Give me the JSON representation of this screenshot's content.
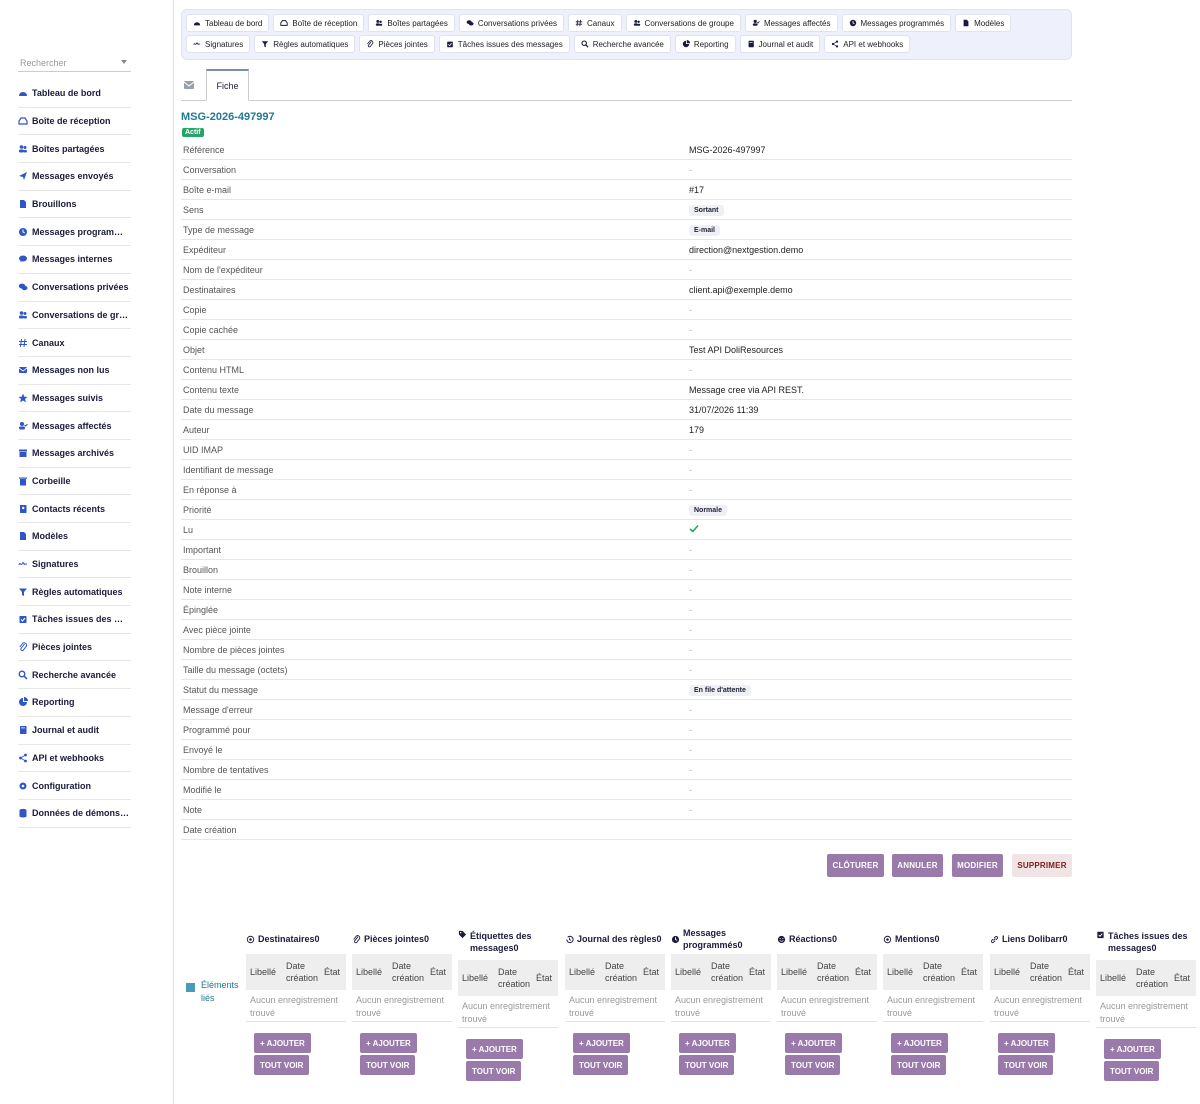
{
  "sidebar": {
    "search_placeholder": "Rechercher",
    "items": [
      {
        "label": "Tableau de bord",
        "icon": "dashboard-icon"
      },
      {
        "label": "Boîte de réception",
        "icon": "inbox-icon"
      },
      {
        "label": "Boîtes partagées",
        "icon": "users-icon"
      },
      {
        "label": "Messages envoyés",
        "icon": "paper-plane-icon"
      },
      {
        "label": "Brouillons",
        "icon": "file-icon"
      },
      {
        "label": "Messages programmés",
        "icon": "clock-icon"
      },
      {
        "label": "Messages internes",
        "icon": "chat-icon"
      },
      {
        "label": "Conversations privées",
        "icon": "comments-icon"
      },
      {
        "label": "Conversations de groupe",
        "icon": "group-icon"
      },
      {
        "label": "Canaux",
        "icon": "hashtag-icon"
      },
      {
        "label": "Messages non lus",
        "icon": "envelope-icon"
      },
      {
        "label": "Messages suivis",
        "icon": "star-icon"
      },
      {
        "label": "Messages affectés",
        "icon": "user-check-icon"
      },
      {
        "label": "Messages archivés",
        "icon": "archive-icon"
      },
      {
        "label": "Corbeille",
        "icon": "trash-icon"
      },
      {
        "label": "Contacts récents",
        "icon": "address-book-icon"
      },
      {
        "label": "Modèles",
        "icon": "file-alt-icon"
      },
      {
        "label": "Signatures",
        "icon": "signature-icon"
      },
      {
        "label": "Règles automatiques",
        "icon": "filter-icon"
      },
      {
        "label": "Tâches issues des messages",
        "icon": "tasks-icon"
      },
      {
        "label": "Pièces jointes",
        "icon": "paperclip-icon"
      },
      {
        "label": "Recherche avancée",
        "icon": "search-icon"
      },
      {
        "label": "Reporting",
        "icon": "chart-pie-icon"
      },
      {
        "label": "Journal et audit",
        "icon": "book-icon"
      },
      {
        "label": "API et webhooks",
        "icon": "share-icon"
      },
      {
        "label": "Configuration",
        "icon": "gear-icon"
      },
      {
        "label": "Données de démonstration",
        "icon": "database-icon"
      }
    ]
  },
  "topnav": {
    "row1": [
      {
        "label": "Tableau de bord",
        "icon": "dashboard-icon"
      },
      {
        "label": "Boîte de réception",
        "icon": "inbox-icon"
      },
      {
        "label": "Boîtes partagées",
        "icon": "users-icon"
      },
      {
        "label": "Conversations privées",
        "icon": "comments-icon"
      },
      {
        "label": "Canaux",
        "icon": "hashtag-icon"
      },
      {
        "label": "Conversations de groupe",
        "icon": "group-icon"
      },
      {
        "label": "Messages affectés",
        "icon": "user-check-icon"
      },
      {
        "label": "Messages programmés",
        "icon": "clock-icon"
      },
      {
        "label": "Modèles",
        "icon": "file-alt-icon"
      }
    ],
    "row2": [
      {
        "label": "Signatures",
        "icon": "signature-icon"
      },
      {
        "label": "Règles automatiques",
        "icon": "filter-icon"
      },
      {
        "label": "Pièces jointes",
        "icon": "paperclip-icon"
      },
      {
        "label": "Tâches issues des messages",
        "icon": "tasks-icon"
      },
      {
        "label": "Recherche avancée",
        "icon": "search-icon"
      },
      {
        "label": "Reporting",
        "icon": "chart-pie-icon"
      },
      {
        "label": "Journal et audit",
        "icon": "book-icon"
      },
      {
        "label": "API et webhooks",
        "icon": "share-icon"
      }
    ]
  },
  "tabs": {
    "fiche": "Fiche"
  },
  "record": {
    "title": "MSG-2026-497997",
    "status": "Actif",
    "fields": [
      {
        "label": "Référence",
        "value": "MSG-2026-497997"
      },
      {
        "label": "Conversation",
        "value": "-"
      },
      {
        "label": "Boîte e-mail",
        "value": "#17"
      },
      {
        "label": "Sens",
        "value": "Sortant",
        "pill": true
      },
      {
        "label": "Type de message",
        "value": "E-mail",
        "pill": true
      },
      {
        "label": "Expéditeur",
        "value": "direction@nextgestion.demo"
      },
      {
        "label": "Nom de l'expéditeur",
        "value": "-"
      },
      {
        "label": "Destinataires",
        "value": "client.api@exemple.demo"
      },
      {
        "label": "Copie",
        "value": "-"
      },
      {
        "label": "Copie cachée",
        "value": "-"
      },
      {
        "label": "Objet",
        "value": "Test API DoliResources"
      },
      {
        "label": "Contenu HTML",
        "value": "-"
      },
      {
        "label": "Contenu texte",
        "value": "Message cree via API REST."
      },
      {
        "label": "Date du message",
        "value": "31/07/2026 11:39"
      },
      {
        "label": "Auteur",
        "value": "179"
      },
      {
        "label": "UID IMAP",
        "value": "-"
      },
      {
        "label": "Identifiant de message",
        "value": "-"
      },
      {
        "label": "En réponse à",
        "value": "-"
      },
      {
        "label": "Priorité",
        "value": "Normale",
        "pill": true
      },
      {
        "label": "Lu",
        "value": "✓",
        "check": true
      },
      {
        "label": "Important",
        "value": "-"
      },
      {
        "label": "Brouillon",
        "value": "-"
      },
      {
        "label": "Note interne",
        "value": "-"
      },
      {
        "label": "Épinglée",
        "value": "-"
      },
      {
        "label": "Avec pièce jointe",
        "value": "-"
      },
      {
        "label": "Nombre de pièces jointes",
        "value": "-"
      },
      {
        "label": "Taille du message (octets)",
        "value": "-"
      },
      {
        "label": "Statut du message",
        "value": "En file d'attente",
        "pill": true
      },
      {
        "label": "Message d'erreur",
        "value": "-"
      },
      {
        "label": "Programmé pour",
        "value": "-"
      },
      {
        "label": "Envoyé le",
        "value": "-"
      },
      {
        "label": "Nombre de tentatives",
        "value": "-"
      },
      {
        "label": "Modifié le",
        "value": "-"
      },
      {
        "label": "Note",
        "value": "-"
      },
      {
        "label": "Date création",
        "value": ""
      }
    ]
  },
  "actions": {
    "close": "CLÔTURER",
    "cancel": "ANNULER",
    "edit": "MODIFIER",
    "delete": "SUPPRIMER"
  },
  "linked": {
    "label": "Éléments liés",
    "headers": {
      "libelle": "Libellé",
      "date": "Date création",
      "etat": "État"
    },
    "empty": "Aucun enregistrement trouvé",
    "add": "+ AJOUTER",
    "see_all": "TOUT VOIR",
    "sections": [
      {
        "title": "Destinataires0",
        "icon": "at-icon"
      },
      {
        "title": "Pièces jointes0",
        "icon": "paperclip-icon"
      },
      {
        "title": "Étiquettes des messages0",
        "icon": "tag-icon"
      },
      {
        "title": "Journal des règles0",
        "icon": "history-icon"
      },
      {
        "title": "Messages programmés0",
        "icon": "clock-icon"
      },
      {
        "title": "Réactions0",
        "icon": "smile-icon"
      },
      {
        "title": "Mentions0",
        "icon": "at-icon"
      },
      {
        "title": "Liens Dolibarr0",
        "icon": "link-icon"
      },
      {
        "title": "Tâches issues des messages0",
        "icon": "calendar-check-icon"
      }
    ]
  },
  "colors": {
    "accent": "#9a79ab",
    "title": "#1f7a93",
    "status_green": "#25a56a",
    "nav_bg": "#eef1fc"
  }
}
